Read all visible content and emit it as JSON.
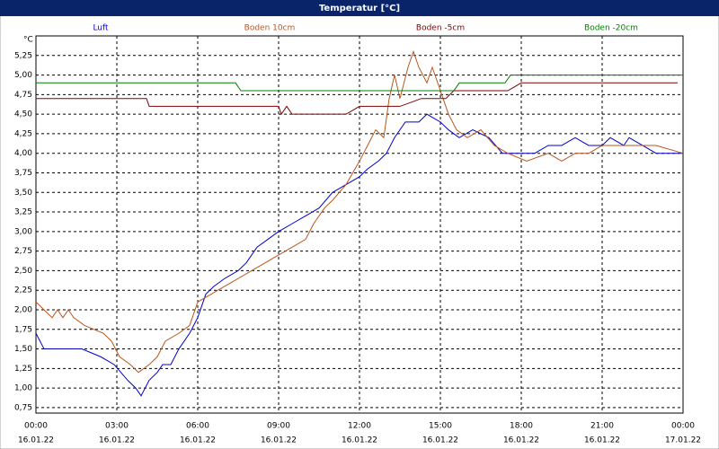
{
  "chart_data": {
    "type": "line",
    "title": "Temperatur [°C]",
    "y_label": "°C",
    "xlim": [
      0,
      24
    ],
    "ylim": [
      0.68,
      5.5
    ],
    "grid": true,
    "xticks": [
      {
        "value": 0,
        "label": "00:00"
      },
      {
        "value": 3,
        "label": "03:00"
      },
      {
        "value": 6,
        "label": "06:00"
      },
      {
        "value": 9,
        "label": "09:00"
      },
      {
        "value": 12,
        "label": "12:00"
      },
      {
        "value": 15,
        "label": "15:00"
      },
      {
        "value": 18,
        "label": "18:00"
      },
      {
        "value": 21,
        "label": "21:00"
      },
      {
        "value": 24,
        "label": "00:00"
      }
    ],
    "xtick_dates": [
      "16.01.22",
      "16.01.22",
      "16.01.22",
      "16.01.22",
      "16.01.22",
      "16.01.22",
      "16.01.22",
      "16.01.22",
      "17.01.22"
    ],
    "yticks": [
      {
        "value": 0.75,
        "label": "0,75"
      },
      {
        "value": 1,
        "label": "1,00"
      },
      {
        "value": 1.25,
        "label": "1,25"
      },
      {
        "value": 1.5,
        "label": "1,50"
      },
      {
        "value": 1.75,
        "label": "1,75"
      },
      {
        "value": 2,
        "label": "2,00"
      },
      {
        "value": 2.25,
        "label": "2,25"
      },
      {
        "value": 2.5,
        "label": "2,50"
      },
      {
        "value": 2.75,
        "label": "2,75"
      },
      {
        "value": 3,
        "label": "3,00"
      },
      {
        "value": 3.25,
        "label": "3,25"
      },
      {
        "value": 3.5,
        "label": "3,50"
      },
      {
        "value": 3.75,
        "label": "3,75"
      },
      {
        "value": 4,
        "label": "4,00"
      },
      {
        "value": 4.25,
        "label": "4,25"
      },
      {
        "value": 4.5,
        "label": "4,50"
      },
      {
        "value": 4.75,
        "label": "4,75"
      },
      {
        "value": 5,
        "label": "5,00"
      },
      {
        "value": 5.25,
        "label": "5,25"
      }
    ],
    "series": [
      {
        "name": "Luft",
        "color": "#0000cc",
        "x": [
          0,
          0.3,
          1.7,
          2.4,
          2.9,
          3.4,
          3.7,
          3.9,
          4.2,
          4.5,
          4.7,
          5,
          5.3,
          5.7,
          6,
          6.3,
          6.6,
          7,
          7.5,
          7.8,
          8.2,
          8.6,
          9,
          9.5,
          10,
          10.5,
          11,
          11.5,
          12,
          12.3,
          12.7,
          13,
          13.3,
          13.7,
          14.2,
          14.5,
          15,
          15.3,
          15.7,
          16.2,
          16.8,
          17.3,
          18,
          18.5,
          19,
          19.5,
          20,
          20.5,
          21,
          21.3,
          21.8,
          22,
          22.5,
          23,
          24
        ],
        "values": [
          1.7,
          1.5,
          1.5,
          1.4,
          1.3,
          1.1,
          1.0,
          0.9,
          1.1,
          1.2,
          1.3,
          1.3,
          1.5,
          1.7,
          1.9,
          2.2,
          2.3,
          2.4,
          2.5,
          2.6,
          2.8,
          2.9,
          3.0,
          3.1,
          3.2,
          3.3,
          3.5,
          3.6,
          3.7,
          3.8,
          3.9,
          4.0,
          4.2,
          4.4,
          4.4,
          4.5,
          4.4,
          4.3,
          4.2,
          4.3,
          4.2,
          4.0,
          4.0,
          4.0,
          4.1,
          4.1,
          4.2,
          4.1,
          4.1,
          4.2,
          4.1,
          4.2,
          4.1,
          4.0,
          4.0
        ]
      },
      {
        "name": "Boden 10cm",
        "color": "#b8561c",
        "x": [
          0,
          0.3,
          0.6,
          0.8,
          1,
          1.2,
          1.4,
          1.8,
          2.5,
          2.8,
          3.1,
          3.5,
          3.8,
          4.2,
          4.5,
          4.8,
          5.3,
          5.7,
          6,
          6.5,
          7,
          7.5,
          8,
          8.5,
          9,
          9.5,
          10,
          10.3,
          10.7,
          11,
          11.5,
          12,
          12.3,
          12.6,
          12.9,
          13.1,
          13.3,
          13.5,
          13.8,
          14,
          14.2,
          14.5,
          14.7,
          15,
          15.3,
          15.6,
          16,
          16.5,
          17,
          17.5,
          18.2,
          19,
          19.5,
          20,
          20.5,
          21,
          22,
          23,
          24
        ],
        "values": [
          2.1,
          2.0,
          1.9,
          2.0,
          1.9,
          2.0,
          1.9,
          1.8,
          1.7,
          1.6,
          1.4,
          1.3,
          1.2,
          1.3,
          1.4,
          1.6,
          1.7,
          1.8,
          2.1,
          2.2,
          2.3,
          2.4,
          2.5,
          2.6,
          2.7,
          2.8,
          2.9,
          3.1,
          3.3,
          3.4,
          3.6,
          3.9,
          4.1,
          4.3,
          4.2,
          4.7,
          5.0,
          4.7,
          5.1,
          5.3,
          5.1,
          4.9,
          5.1,
          4.8,
          4.5,
          4.3,
          4.2,
          4.3,
          4.1,
          4.0,
          3.9,
          4.0,
          3.9,
          4.0,
          4.0,
          4.1,
          4.1,
          4.1,
          4.0
        ]
      },
      {
        "name": "Boden -5cm",
        "color": "#800000",
        "x": [
          0,
          4.1,
          4.2,
          9,
          9.1,
          9.3,
          9.5,
          11.5,
          12,
          13.5,
          14.3,
          15.2,
          15.5,
          17.5,
          18,
          23.8
        ],
        "values": [
          4.7,
          4.7,
          4.6,
          4.6,
          4.5,
          4.6,
          4.5,
          4.5,
          4.6,
          4.6,
          4.7,
          4.7,
          4.8,
          4.8,
          4.9,
          4.9
        ]
      },
      {
        "name": "Boden -20cm",
        "color": "#008000",
        "x": [
          0,
          7.4,
          7.6,
          15.5,
          15.7,
          17.4,
          17.6,
          24
        ],
        "values": [
          4.9,
          4.9,
          4.8,
          4.8,
          4.9,
          4.9,
          5.0,
          5.0
        ]
      }
    ]
  }
}
